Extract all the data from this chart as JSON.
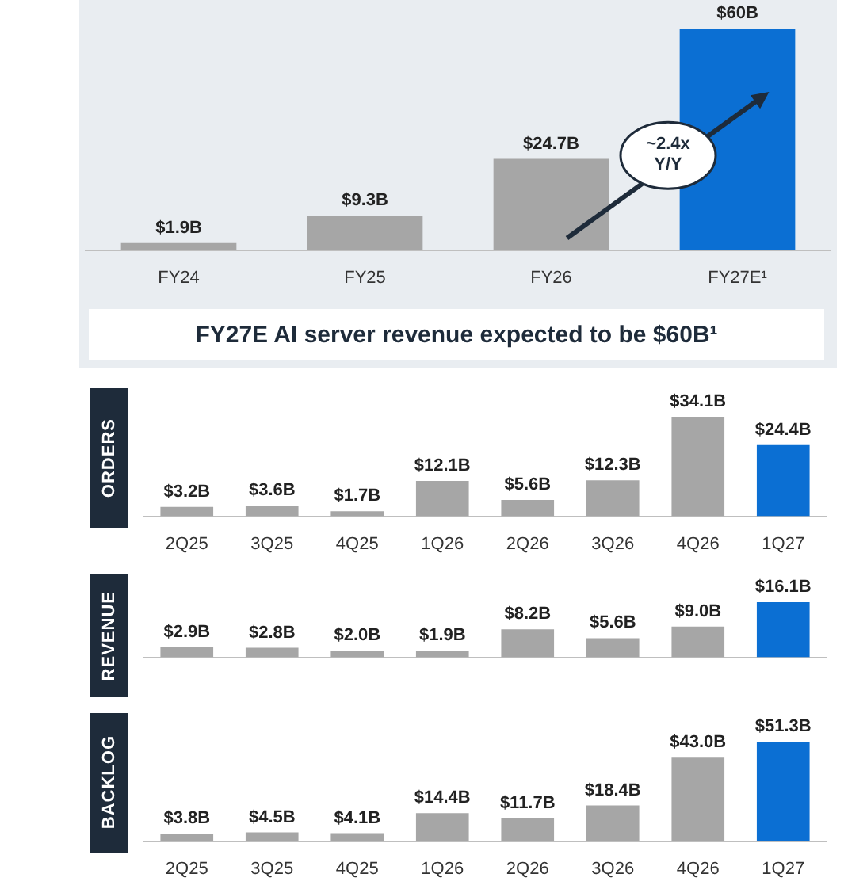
{
  "chart_data": [
    {
      "type": "bar",
      "categories": [
        "FY24",
        "FY25",
        "FY26",
        "FY27E¹"
      ],
      "values": [
        1.9,
        9.3,
        24.7,
        60
      ],
      "colors": [
        "#a6a6a6",
        "#a6a6a6",
        "#a6a6a6",
        "#0b6fd3"
      ],
      "value_labels": [
        "$1.9B",
        "$9.3B",
        "$24.7B",
        "$60B"
      ],
      "annotations": [
        "~2.4x Y/Y",
        "FY27E AI server revenue expected to be $60B¹"
      ]
    },
    {
      "type": "bar",
      "ylabel": "ORDERS",
      "categories": [
        "2Q25",
        "3Q25",
        "4Q25",
        "1Q26",
        "2Q26",
        "3Q26",
        "4Q26",
        "1Q27"
      ],
      "values": [
        3.2,
        3.6,
        1.7,
        12.1,
        5.6,
        12.3,
        34.1,
        24.4
      ],
      "colors": [
        "#a6a6a6",
        "#a6a6a6",
        "#a6a6a6",
        "#a6a6a6",
        "#a6a6a6",
        "#a6a6a6",
        "#a6a6a6",
        "#0b6fd3"
      ],
      "value_labels": [
        "$3.2B",
        "$3.6B",
        "$1.7B",
        "$12.1B",
        "$5.6B",
        "$12.3B",
        "$34.1B",
        "$24.4B"
      ]
    },
    {
      "type": "bar",
      "ylabel": "REVENUE",
      "categories": [
        null,
        null,
        null,
        null,
        null,
        null,
        null,
        null
      ],
      "values": [
        2.9,
        2.8,
        2.0,
        1.9,
        8.2,
        5.6,
        9.0,
        16.1
      ],
      "colors": [
        "#a6a6a6",
        "#a6a6a6",
        "#a6a6a6",
        "#a6a6a6",
        "#a6a6a6",
        "#a6a6a6",
        "#a6a6a6",
        "#0b6fd3"
      ],
      "value_labels": [
        "$2.9B",
        "$2.8B",
        "$2.0B",
        "$1.9B",
        "$8.2B",
        "$5.6B",
        "$9.0B",
        "$16.1B"
      ]
    },
    {
      "type": "bar",
      "ylabel": "BACKLOG",
      "categories": [
        "2Q25",
        "3Q25",
        "4Q25",
        "1Q26",
        "2Q26",
        "3Q26",
        "4Q26",
        "1Q27"
      ],
      "values": [
        3.8,
        4.5,
        4.1,
        14.4,
        11.7,
        18.4,
        43.0,
        51.3
      ],
      "colors": [
        "#a6a6a6",
        "#a6a6a6",
        "#a6a6a6",
        "#a6a6a6",
        "#a6a6a6",
        "#a6a6a6",
        "#a6a6a6",
        "#0b6fd3"
      ],
      "value_labels": [
        "$3.8B",
        "$4.5B",
        "$4.1B",
        "$14.4B",
        "$11.7B",
        "$18.4B",
        "$43.0B",
        "$51.3B"
      ]
    }
  ]
}
